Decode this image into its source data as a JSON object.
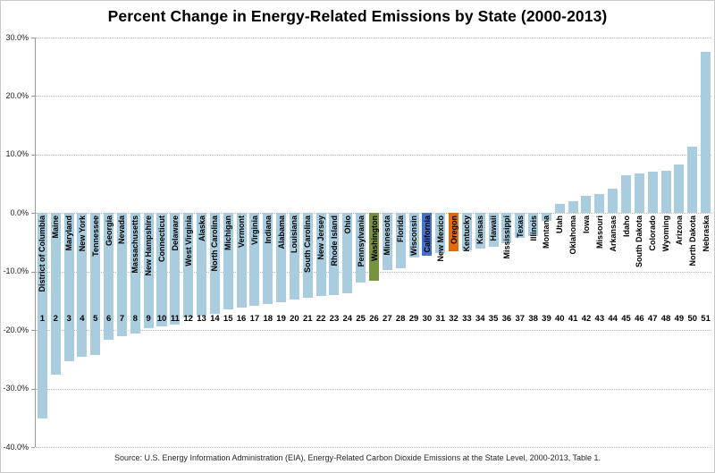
{
  "title": "Percent Change in Energy-Related Emissions by State (2000-2013)",
  "source_note": "Source:  U.S. Energy Information Administration (EIA), Energy-Related Carbon Dioxide Emissions at the State Level, 2000-2013, Table 1.",
  "colors": {
    "bar_default": "#A9CDDE",
    "bar_washington": "#77933C",
    "bar_california": "#4472C4",
    "bar_oregon": "#E36C0A",
    "gridline": "#B9B9B9",
    "axis_line": "#9A9A9A",
    "text": "#000000"
  },
  "chart_data": {
    "type": "bar",
    "title": "Percent Change in Energy-Related Emissions by State (2000-2013)",
    "xlabel": "",
    "ylabel": "",
    "ylim": [
      -40,
      30
    ],
    "grid": "horizontal-dotted",
    "legend_position": "none",
    "bar_orientation": "vertical",
    "yticks": [
      {
        "label": "30.0%",
        "value": 30
      },
      {
        "label": "20.0%",
        "value": 20
      },
      {
        "label": "10.0%",
        "value": 10
      },
      {
        "label": "0.0%",
        "value": 0
      },
      {
        "label": "-10.0%",
        "value": -10
      },
      {
        "label": "-20.0%",
        "value": -20
      },
      {
        "label": "-30.0%",
        "value": -30
      },
      {
        "label": "-40.0%",
        "value": -40
      }
    ],
    "states": [
      {
        "rank": 1,
        "name": "District of Columbia",
        "value": -35.1,
        "color": null
      },
      {
        "rank": 2,
        "name": "Maine",
        "value": -27.6,
        "color": null
      },
      {
        "rank": 3,
        "name": "Maryland",
        "value": -25.4,
        "color": null
      },
      {
        "rank": 4,
        "name": "New York",
        "value": -24.6,
        "color": null
      },
      {
        "rank": 5,
        "name": "Tennessee",
        "value": -24.2,
        "color": null
      },
      {
        "rank": 6,
        "name": "Georgia",
        "value": -21.6,
        "color": null
      },
      {
        "rank": 7,
        "name": "Nevada",
        "value": -21.0,
        "color": null
      },
      {
        "rank": 8,
        "name": "Massachusetts",
        "value": -20.6,
        "color": null
      },
      {
        "rank": 9,
        "name": "New Hampshire",
        "value": -19.6,
        "color": null
      },
      {
        "rank": 10,
        "name": "Connecticut",
        "value": -19.4,
        "color": null
      },
      {
        "rank": 11,
        "name": "Delaware",
        "value": -19.0,
        "color": null
      },
      {
        "rank": 12,
        "name": "West Virginia",
        "value": -17.8,
        "color": null
      },
      {
        "rank": 13,
        "name": "Alaska",
        "value": -17.6,
        "color": null
      },
      {
        "rank": 14,
        "name": "North Carolina",
        "value": -17.3,
        "color": null
      },
      {
        "rank": 15,
        "name": "Michigan",
        "value": -16.5,
        "color": null
      },
      {
        "rank": 16,
        "name": "Vermont",
        "value": -16.2,
        "color": null
      },
      {
        "rank": 17,
        "name": "Virginia",
        "value": -15.8,
        "color": null
      },
      {
        "rank": 18,
        "name": "Indiana",
        "value": -15.6,
        "color": null
      },
      {
        "rank": 19,
        "name": "Alabama",
        "value": -15.2,
        "color": null
      },
      {
        "rank": 20,
        "name": "Louisiana",
        "value": -14.8,
        "color": null
      },
      {
        "rank": 21,
        "name": "South Carolina",
        "value": -14.5,
        "color": null
      },
      {
        "rank": 22,
        "name": "New Jersey",
        "value": -14.2,
        "color": null
      },
      {
        "rank": 23,
        "name": "Rhode Island",
        "value": -14.0,
        "color": null
      },
      {
        "rank": 24,
        "name": "Ohio",
        "value": -13.7,
        "color": null
      },
      {
        "rank": 25,
        "name": "Pennsylvania",
        "value": -11.9,
        "color": null
      },
      {
        "rank": 26,
        "name": "Washington",
        "value": -11.6,
        "color": "#77933C"
      },
      {
        "rank": 27,
        "name": "Minnesota",
        "value": -9.7,
        "color": null
      },
      {
        "rank": 28,
        "name": "Florida",
        "value": -9.4,
        "color": null
      },
      {
        "rank": 29,
        "name": "Wisconsin",
        "value": -7.6,
        "color": null
      },
      {
        "rank": 30,
        "name": "California",
        "value": -7.3,
        "color": "#4472C4"
      },
      {
        "rank": 31,
        "name": "New Mexico",
        "value": -6.9,
        "color": null
      },
      {
        "rank": 32,
        "name": "Oregon",
        "value": -6.5,
        "color": "#E36C0A"
      },
      {
        "rank": 33,
        "name": "Kentucky",
        "value": -6.3,
        "color": null
      },
      {
        "rank": 34,
        "name": "Kansas",
        "value": -6.0,
        "color": null
      },
      {
        "rank": 35,
        "name": "Hawaii",
        "value": -5.8,
        "color": null
      },
      {
        "rank": 36,
        "name": "Mississippi",
        "value": -5.1,
        "color": null
      },
      {
        "rank": 37,
        "name": "Texas",
        "value": -4.3,
        "color": null
      },
      {
        "rank": 38,
        "name": "Illinois",
        "value": -3.9,
        "color": null
      },
      {
        "rank": 39,
        "name": "Montana",
        "value": -1.4,
        "color": null
      },
      {
        "rank": 40,
        "name": "Utah",
        "value": 1.5,
        "color": null
      },
      {
        "rank": 41,
        "name": "Oklahoma",
        "value": 2.0,
        "color": null
      },
      {
        "rank": 42,
        "name": "Iowa",
        "value": 3.0,
        "color": null
      },
      {
        "rank": 43,
        "name": "Missouri",
        "value": 3.3,
        "color": null
      },
      {
        "rank": 44,
        "name": "Arkansas",
        "value": 4.2,
        "color": null
      },
      {
        "rank": 45,
        "name": "Idaho",
        "value": 6.5,
        "color": null
      },
      {
        "rank": 46,
        "name": "South Dakota",
        "value": 6.7,
        "color": null
      },
      {
        "rank": 47,
        "name": "Colorado",
        "value": 7.0,
        "color": null
      },
      {
        "rank": 48,
        "name": "Wyoming",
        "value": 7.2,
        "color": null
      },
      {
        "rank": 49,
        "name": "Arizona",
        "value": 8.3,
        "color": null
      },
      {
        "rank": 50,
        "name": "North Dakota",
        "value": 11.3,
        "color": null
      },
      {
        "rank": 51,
        "name": "Nebraska",
        "value": 27.5,
        "color": null
      }
    ]
  }
}
